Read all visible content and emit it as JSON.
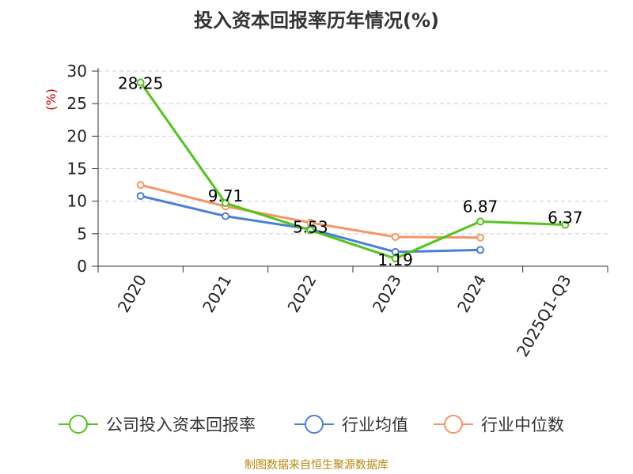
{
  "title": "投入资本回报率历年情况(%)",
  "source": "制图数据来自恒生聚源数据库",
  "chart_data": {
    "type": "line",
    "title": "投入资本回报率历年情况(%)",
    "ylabel": "(%)",
    "xlabel": "",
    "categories": [
      "2020",
      "2021",
      "2022",
      "2023",
      "2024",
      "2025Q1-Q3"
    ],
    "ylim": [
      0,
      30
    ],
    "yticks": [
      0,
      5,
      10,
      15,
      20,
      25,
      30
    ],
    "grid": "horizontal dashed",
    "legend_position": "bottom",
    "series": [
      {
        "name": "公司投入资本回报率",
        "color": "#52c41a",
        "labels": true,
        "values": [
          28.25,
          9.71,
          5.53,
          1.19,
          6.87,
          6.37
        ]
      },
      {
        "name": "行业均值",
        "color": "#4a7fd8",
        "labels": false,
        "values": [
          10.8,
          7.7,
          5.7,
          2.2,
          2.5,
          null
        ]
      },
      {
        "name": "行业中位数",
        "color": "#f59563",
        "labels": false,
        "values": [
          12.5,
          9.2,
          6.7,
          4.5,
          4.4,
          null
        ]
      }
    ],
    "data_labels": [
      "28.25",
      "9.71",
      "5.53",
      "1.19",
      "6.87",
      "6.37"
    ]
  }
}
